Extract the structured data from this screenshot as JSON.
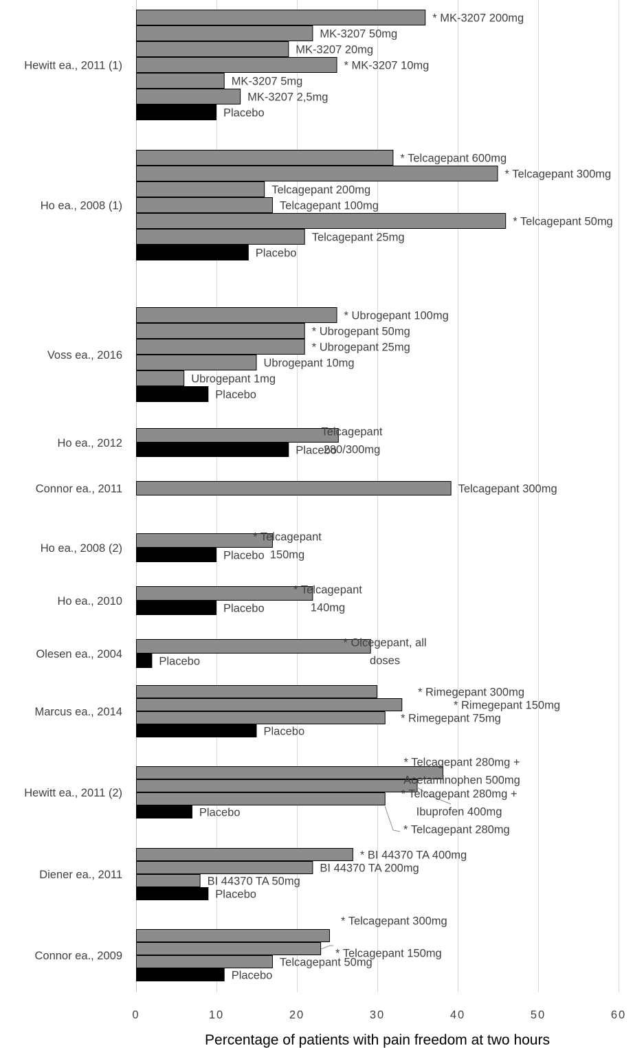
{
  "chart_data": {
    "type": "bar",
    "orientation": "horizontal",
    "title": "",
    "xlabel": "Percentage of patients with pain freedom at two hours",
    "ylabel": "",
    "xlim": [
      0,
      60
    ],
    "xticks": [
      "0",
      "10",
      "20",
      "30",
      "40",
      "50",
      "60"
    ],
    "grid": true,
    "legend": "none",
    "colors": {
      "active": "#8c8c8c",
      "placebo": "#000000",
      "outline": "#000000"
    },
    "groups": [
      {
        "study": "Hewitt ea., 2011 (1)",
        "bars": [
          {
            "label": "* MK-3207 200mg",
            "value": 36,
            "placebo": false
          },
          {
            "label": "MK-3207 50mg",
            "value": 22,
            "placebo": false
          },
          {
            "label": "MK-3207 20mg",
            "value": 19,
            "placebo": false
          },
          {
            "label": "* MK-3207 10mg",
            "value": 25,
            "placebo": false
          },
          {
            "label": "MK-3207 5mg",
            "value": 11,
            "placebo": false
          },
          {
            "label": "MK-3207 2,5mg",
            "value": 13,
            "placebo": false
          },
          {
            "label": "Placebo",
            "value": 10,
            "placebo": true
          }
        ]
      },
      {
        "study": "Ho ea., 2008 (1)",
        "bars": [
          {
            "label": "* Telcagepant 600mg",
            "value": 32,
            "placebo": false
          },
          {
            "label": "* Telcagepant 300mg",
            "value": 45,
            "placebo": false
          },
          {
            "label": "Telcagepant 200mg",
            "value": 16,
            "placebo": false
          },
          {
            "label": "Telcagepant 100mg",
            "value": 17,
            "placebo": false
          },
          {
            "label": "* Telcagepant 50mg",
            "value": 46,
            "placebo": false
          },
          {
            "label": "Telcagepant 25mg",
            "value": 21,
            "placebo": false
          },
          {
            "label": "Placebo",
            "value": 14,
            "placebo": true
          }
        ]
      },
      {
        "study": "Voss ea., 2016",
        "bars": [
          {
            "label": "* Ubrogepant 100mg",
            "value": 25,
            "placebo": false
          },
          {
            "label": "* Ubrogepant 50mg",
            "value": 21,
            "placebo": false
          },
          {
            "label": "* Ubrogepant 25mg",
            "value": 21,
            "placebo": false
          },
          {
            "label": "Ubrogepant 10mg",
            "value": 15,
            "placebo": false
          },
          {
            "label": "Ubrogepant 1mg",
            "value": 6,
            "placebo": false
          },
          {
            "label": "Placebo",
            "value": 9,
            "placebo": true
          }
        ]
      },
      {
        "study": "Ho ea., 2012",
        "bars": [
          {
            "label": "Telcagepant 280/300mg",
            "lines": [
              "Telcagepant",
              "280/300mg"
            ],
            "value": 25.2,
            "placebo": false
          },
          {
            "label": "Placebo",
            "value": 19,
            "placebo": true
          }
        ]
      },
      {
        "study": "Connor ea., 2011",
        "bars": [
          {
            "label": "Telcagepant 300mg",
            "value": 39.2,
            "placebo": false
          }
        ]
      },
      {
        "study": "Ho ea., 2008 (2)",
        "bars": [
          {
            "label": "* Telcagepant 150mg",
            "lines": [
              "* Telcagepant",
              "150mg"
            ],
            "value": 17,
            "placebo": false
          },
          {
            "label": "Placebo",
            "value": 10,
            "placebo": true
          }
        ]
      },
      {
        "study": "Ho ea., 2010",
        "bars": [
          {
            "label": "* Telcagepant 140mg",
            "lines": [
              "* Telcagepant",
              "140mg"
            ],
            "value": 22,
            "placebo": false
          },
          {
            "label": "Placebo",
            "value": 10,
            "placebo": true
          }
        ]
      },
      {
        "study": "Olesen ea., 2004",
        "bars": [
          {
            "label": "* Olcegepant, all doses",
            "lines": [
              "* Olcegepant, all",
              "doses"
            ],
            "value": 29.2,
            "placebo": false
          },
          {
            "label": "Placebo",
            "value": 2,
            "placebo": true
          }
        ]
      },
      {
        "study": "Marcus ea., 2014",
        "bars": [
          {
            "label": "* Rimegepant 300mg",
            "value": 30,
            "placebo": false
          },
          {
            "label": "* Rimegepant 150mg",
            "value": 33.1,
            "placebo": false
          },
          {
            "label": "* Rimegepant 75mg",
            "value": 31,
            "placebo": false
          },
          {
            "label": "Placebo",
            "value": 15,
            "placebo": true
          }
        ]
      },
      {
        "study": "Hewitt ea., 2011 (2)",
        "bars": [
          {
            "label": "* Telcagepant 280mg + Acetaminophen 500mg",
            "lines": [
              "* Telcagepant 280mg +",
              "Acetaminophen 500mg"
            ],
            "value": 38.2,
            "placebo": false
          },
          {
            "label": "* Telcagepant 280mg + Ibuprofen 400mg",
            "lines": [
              "* Telcagepant 280mg +",
              "Ibuprofen 400mg"
            ],
            "value": 35,
            "placebo": false
          },
          {
            "label": "* Telcagepant 280mg",
            "value": 31,
            "placebo": false
          },
          {
            "label": "Placebo",
            "value": 7,
            "placebo": true
          }
        ]
      },
      {
        "study": "Diener ea., 2011",
        "bars": [
          {
            "label": "* BI 44370 TA 400mg",
            "value": 27,
            "placebo": false
          },
          {
            "label": "BI 44370 TA 200mg",
            "value": 22,
            "placebo": false
          },
          {
            "label": "BI 44370 TA 50mg",
            "value": 8,
            "placebo": false
          },
          {
            "label": "Placebo",
            "value": 9,
            "placebo": true
          }
        ]
      },
      {
        "study": "Connor ea., 2009",
        "bars": [
          {
            "label": "* Telcagepant 300mg",
            "value": 24.1,
            "placebo": false
          },
          {
            "label": "* Telcagepant 150mg",
            "value": 23,
            "placebo": false
          },
          {
            "label": "Telcagepant 50mg",
            "value": 17,
            "placebo": false
          },
          {
            "label": "Placebo",
            "value": 11,
            "placebo": true
          }
        ]
      }
    ]
  }
}
